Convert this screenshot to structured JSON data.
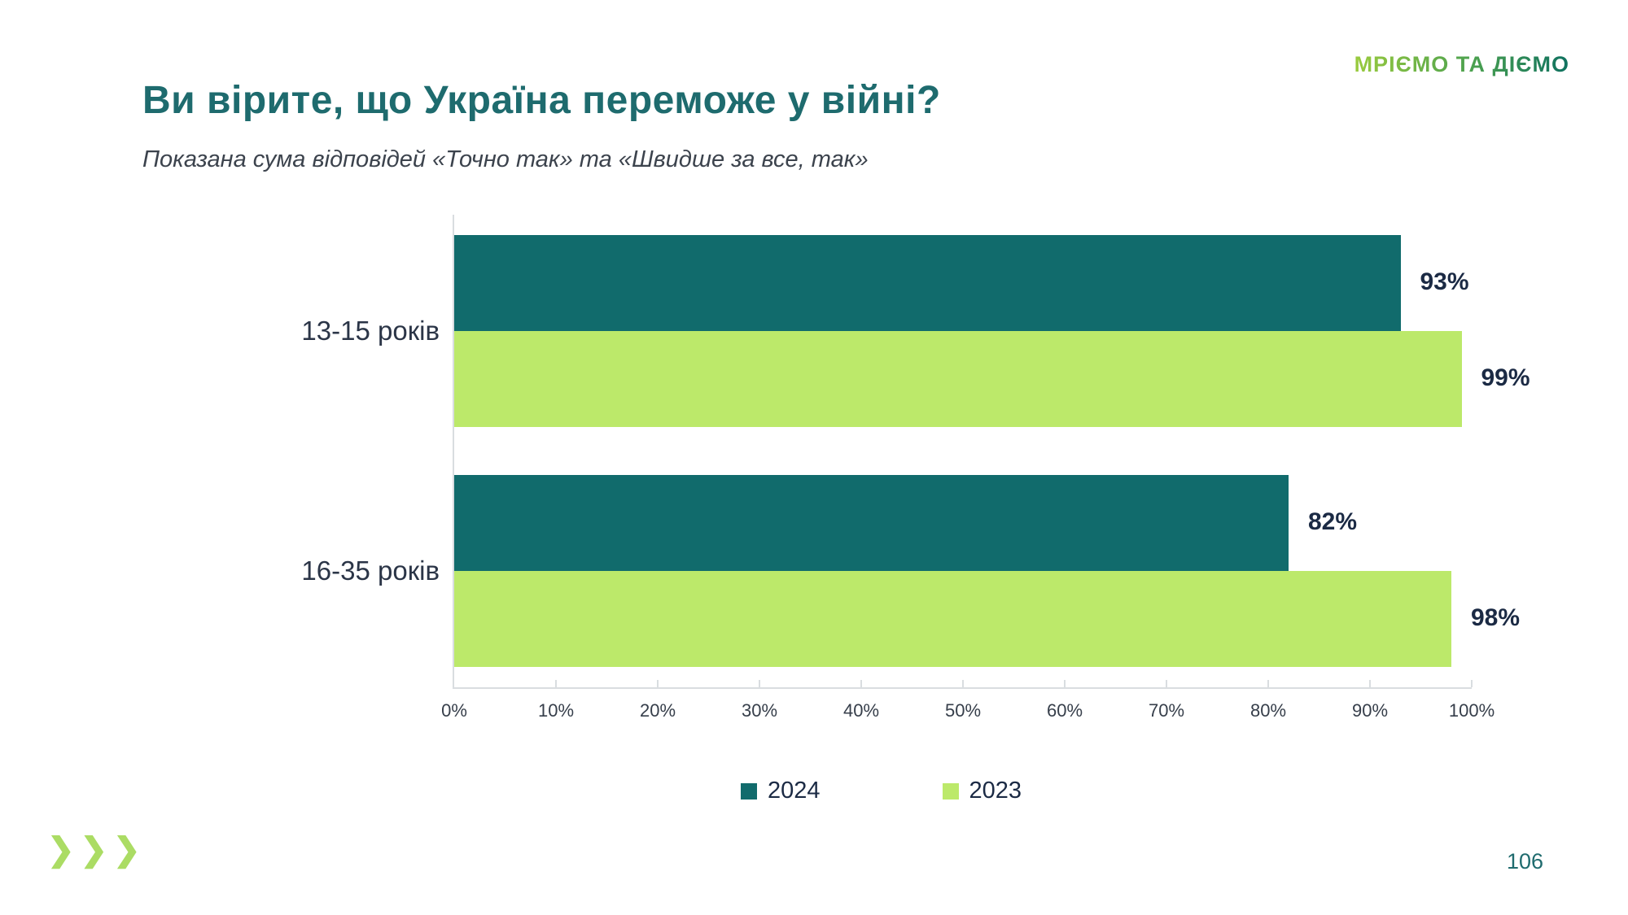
{
  "slide": {
    "title": "Ви вірите, що Україна переможе у війні?",
    "subtitle": "Показана сума відповідей «Точно так» та «Швидше за все, так»",
    "logo_text": "МРІЄМО ТА ДІЄМО",
    "page_number": "106",
    "footer_chevrons": "❯❯❯"
  },
  "colors": {
    "bar_2024_teal": "#116b6c",
    "bar_2023_green": "#bce96a",
    "title_teal": "#1e6b6e",
    "value_text_navy": "#1b2a44",
    "axis_gray": "#d9dde0",
    "logo_gradient_start": "#9acb3e",
    "logo_gradient_end": "#0f7160",
    "chevron_green": "#abdc64"
  },
  "chart_data": {
    "type": "bar",
    "orientation": "horizontal",
    "title": "Ви вірите, що Україна переможе у війні?",
    "subtitle": "Показана сума відповідей «Точно так» та «Швидше за все, так»",
    "categories": [
      "13-15 років",
      "16-35 років"
    ],
    "series": [
      {
        "name": "2024",
        "color": "#116b6c",
        "values": [
          93,
          82
        ]
      },
      {
        "name": "2023",
        "color": "#bce96a",
        "values": [
          99,
          98
        ]
      }
    ],
    "value_suffix": "%",
    "xlim": [
      0,
      100
    ],
    "x_tick_labels": [
      "0%",
      "10%",
      "20%",
      "30%",
      "40%",
      "50%",
      "60%",
      "70%",
      "80%",
      "90%",
      "100%"
    ],
    "grid": false,
    "legend_position": "bottom"
  }
}
